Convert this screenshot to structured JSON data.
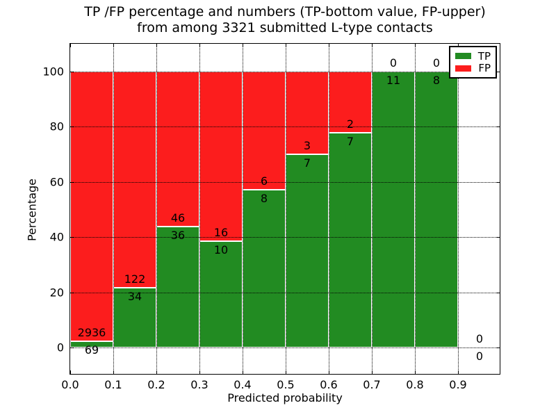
{
  "chart_data": {
    "type": "bar",
    "stacked": true,
    "title": "TP /FP percentage and numbers (TP-bottom value, FP-upper)\nfrom among 3321 submitted L-type contacts",
    "title_lines": [
      "TP /FP percentage and numbers (TP-bottom value, FP-upper)",
      "from among 3321 submitted L-type contacts"
    ],
    "xlabel": "Predicted probability",
    "ylabel": "Percentage",
    "xlim": [
      0.0,
      1.0
    ],
    "ylim": [
      -10,
      110
    ],
    "xticks": [
      "0.0",
      "0.1",
      "0.2",
      "0.3",
      "0.4",
      "0.5",
      "0.6",
      "0.7",
      "0.8",
      "0.9"
    ],
    "yticks": [
      0,
      20,
      40,
      60,
      80,
      100
    ],
    "grid": "dotted",
    "total_submitted_contacts": 3321,
    "colors": {
      "tp": "#228b22",
      "fp": "#fc1d1d"
    },
    "legend": {
      "position": "upper right",
      "entries": [
        {
          "label": "TP",
          "color": "#228b22"
        },
        {
          "label": "FP",
          "color": "#fc1d1d"
        }
      ]
    },
    "categories": [
      "0.0-0.1",
      "0.1-0.2",
      "0.2-0.3",
      "0.3-0.4",
      "0.4-0.5",
      "0.5-0.6",
      "0.6-0.7",
      "0.7-0.8",
      "0.8-0.9",
      "0.9-1.0"
    ],
    "series": [
      {
        "name": "TP",
        "counts": [
          69,
          34,
          36,
          10,
          8,
          7,
          7,
          11,
          8,
          0
        ]
      },
      {
        "name": "FP",
        "counts": [
          2936,
          122,
          46,
          16,
          6,
          3,
          2,
          0,
          0,
          0
        ]
      }
    ],
    "bins": [
      {
        "range": [
          0.0,
          0.1
        ],
        "tp": 69,
        "fp": 2936,
        "tp_pct": 2.3
      },
      {
        "range": [
          0.1,
          0.2
        ],
        "tp": 34,
        "fp": 122,
        "tp_pct": 21.8
      },
      {
        "range": [
          0.2,
          0.3
        ],
        "tp": 36,
        "fp": 46,
        "tp_pct": 43.9
      },
      {
        "range": [
          0.3,
          0.4
        ],
        "tp": 10,
        "fp": 16,
        "tp_pct": 38.5
      },
      {
        "range": [
          0.4,
          0.5
        ],
        "tp": 8,
        "fp": 6,
        "tp_pct": 57.1
      },
      {
        "range": [
          0.5,
          0.6
        ],
        "tp": 7,
        "fp": 3,
        "tp_pct": 70.0
      },
      {
        "range": [
          0.6,
          0.7
        ],
        "tp": 7,
        "fp": 2,
        "tp_pct": 77.8
      },
      {
        "range": [
          0.7,
          0.8
        ],
        "tp": 11,
        "fp": 0,
        "tp_pct": 100.0
      },
      {
        "range": [
          0.8,
          0.9
        ],
        "tp": 8,
        "fp": 0,
        "tp_pct": 100.0
      },
      {
        "range": [
          0.9,
          1.0
        ],
        "tp": 0,
        "fp": 0,
        "tp_pct": null
      }
    ]
  }
}
